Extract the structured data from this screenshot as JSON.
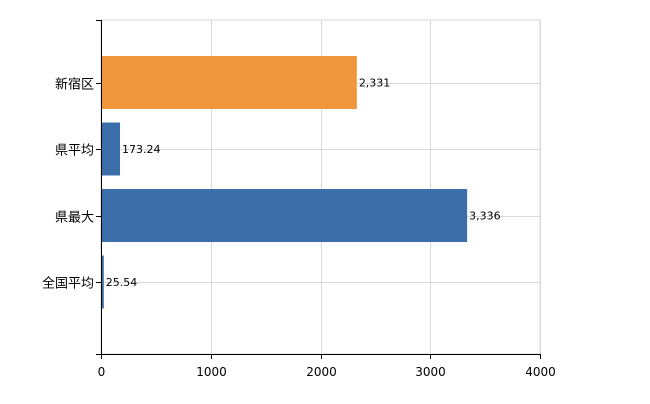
{
  "chart_data": {
    "type": "bar",
    "orientation": "horizontal",
    "categories": [
      "新宿区",
      "県平均",
      "県最大",
      "全国平均"
    ],
    "values": [
      2331,
      173.24,
      3336,
      25.54
    ],
    "value_labels": [
      "2,331",
      "173.24",
      "3,336",
      "25.54"
    ],
    "bar_colors": [
      "#F0963C",
      "#3C6EAA",
      "#3C6EAA",
      "#3C6EAA"
    ],
    "xlim": [
      0,
      4000
    ],
    "xticks": [
      0,
      1000,
      2000,
      3000,
      4000
    ],
    "xtick_labels": [
      "0",
      "1000",
      "2000",
      "3000",
      "4000"
    ],
    "grid": true,
    "title": "",
    "xlabel": "",
    "ylabel": ""
  }
}
